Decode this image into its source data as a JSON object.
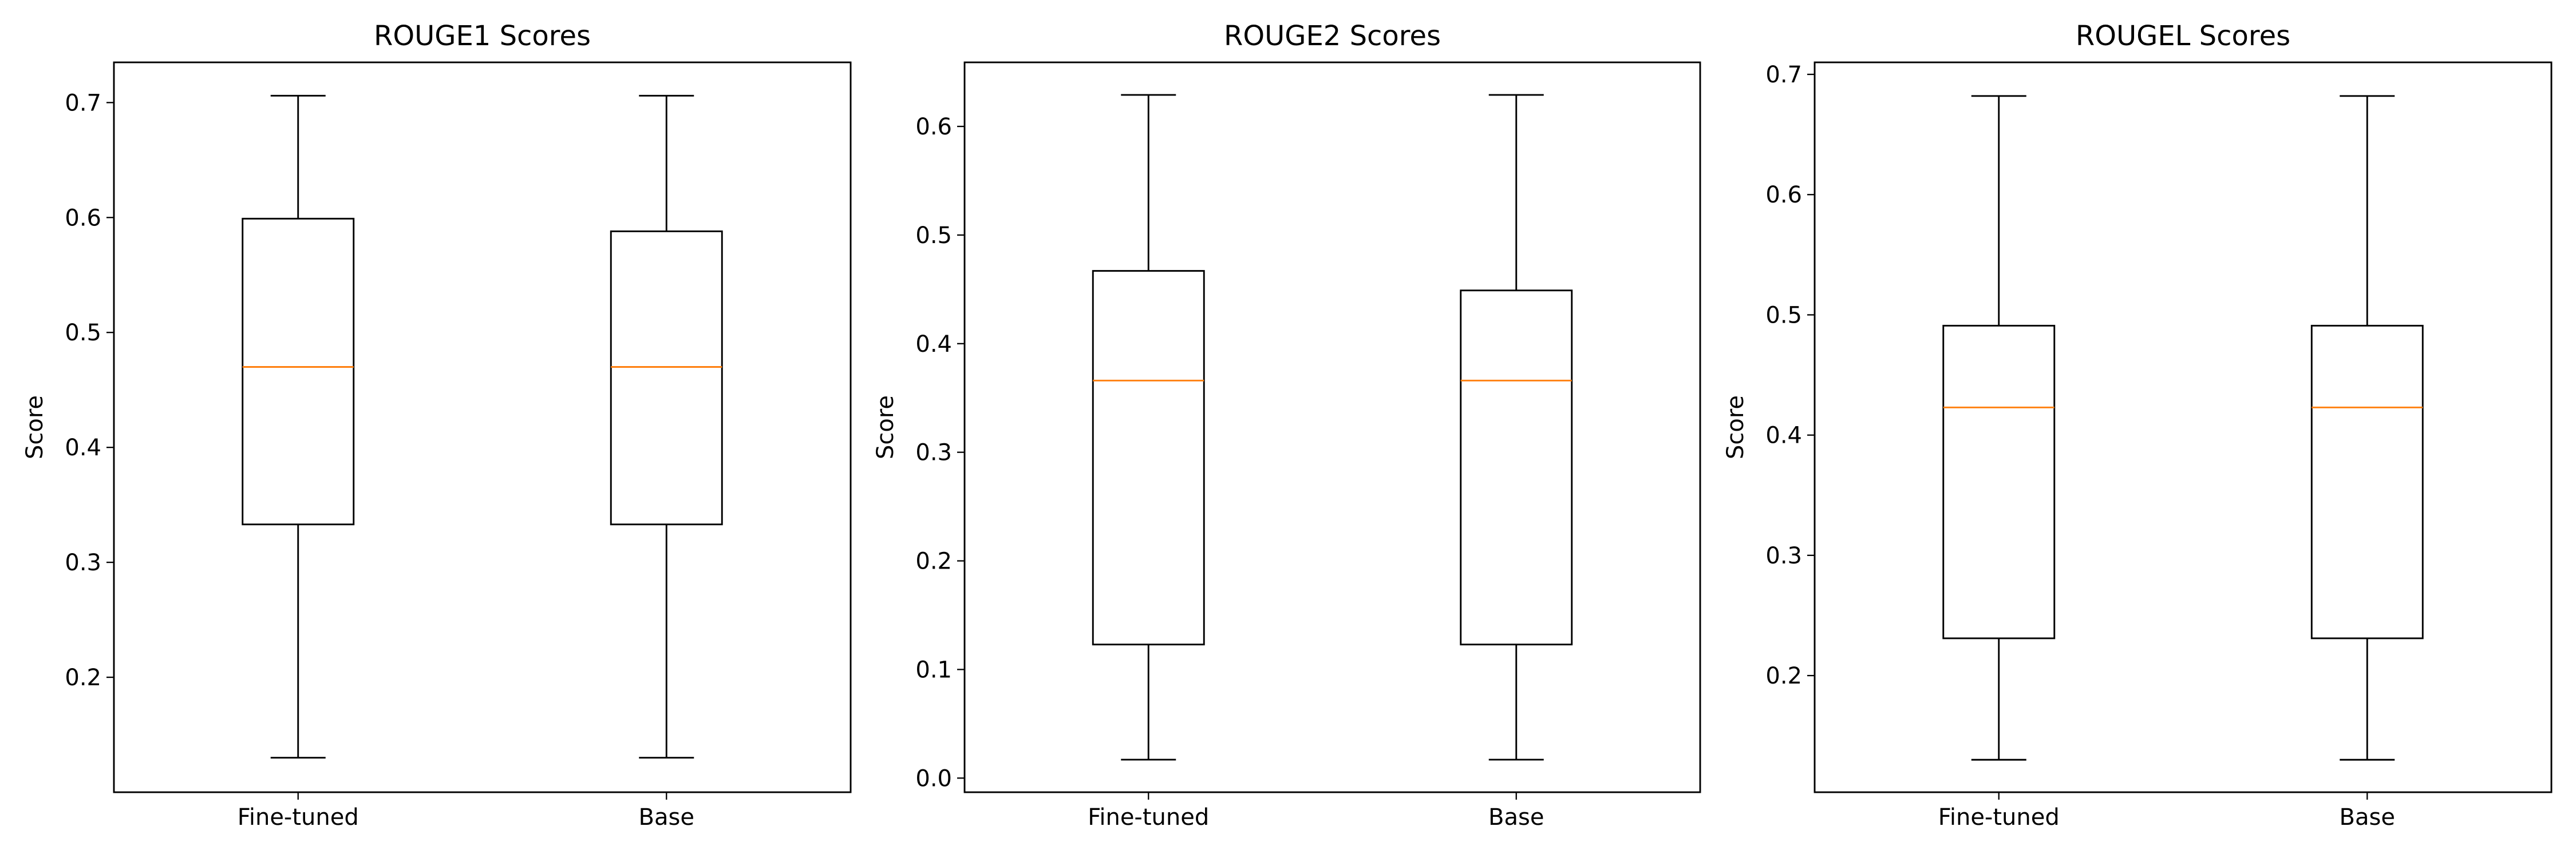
{
  "colors": {
    "box": "#000000",
    "median": "#ff7f0e"
  },
  "chart_data": [
    {
      "type": "box",
      "title": "ROUGE1 Scores",
      "xlabel": "",
      "ylabel": "Score",
      "categories": [
        "Fine-tuned",
        "Base"
      ],
      "ylim": [
        0.1,
        0.735
      ],
      "yticks": [
        0.2,
        0.3,
        0.4,
        0.5,
        0.6,
        0.7
      ],
      "ytick_labels": [
        "0.2",
        "0.3",
        "0.4",
        "0.5",
        "0.6",
        "0.7"
      ],
      "boxes": [
        {
          "whislo": 0.13,
          "q1": 0.333,
          "med": 0.47,
          "q3": 0.599,
          "whishi": 0.706
        },
        {
          "whislo": 0.13,
          "q1": 0.333,
          "med": 0.47,
          "q3": 0.588,
          "whishi": 0.706
        }
      ]
    },
    {
      "type": "box",
      "title": "ROUGE2 Scores",
      "xlabel": "",
      "ylabel": "Score",
      "categories": [
        "Fine-tuned",
        "Base"
      ],
      "ylim": [
        -0.013,
        0.659
      ],
      "yticks": [
        0.0,
        0.1,
        0.2,
        0.3,
        0.4,
        0.5,
        0.6
      ],
      "ytick_labels": [
        "0.0",
        "0.1",
        "0.2",
        "0.3",
        "0.4",
        "0.5",
        "0.6"
      ],
      "boxes": [
        {
          "whislo": 0.017,
          "q1": 0.123,
          "med": 0.366,
          "q3": 0.467,
          "whishi": 0.629
        },
        {
          "whislo": 0.017,
          "q1": 0.123,
          "med": 0.366,
          "q3": 0.449,
          "whishi": 0.629
        }
      ]
    },
    {
      "type": "box",
      "title": "ROUGEL Scores",
      "xlabel": "",
      "ylabel": "Score",
      "categories": [
        "Fine-tuned",
        "Base"
      ],
      "ylim": [
        0.103,
        0.71
      ],
      "yticks": [
        0.2,
        0.3,
        0.4,
        0.5,
        0.6,
        0.7
      ],
      "ytick_labels": [
        "0.2",
        "0.3",
        "0.4",
        "0.5",
        "0.6",
        "0.7"
      ],
      "boxes": [
        {
          "whislo": 0.13,
          "q1": 0.231,
          "med": 0.423,
          "q3": 0.491,
          "whishi": 0.682
        },
        {
          "whislo": 0.13,
          "q1": 0.231,
          "med": 0.423,
          "q3": 0.491,
          "whishi": 0.682
        }
      ]
    }
  ]
}
